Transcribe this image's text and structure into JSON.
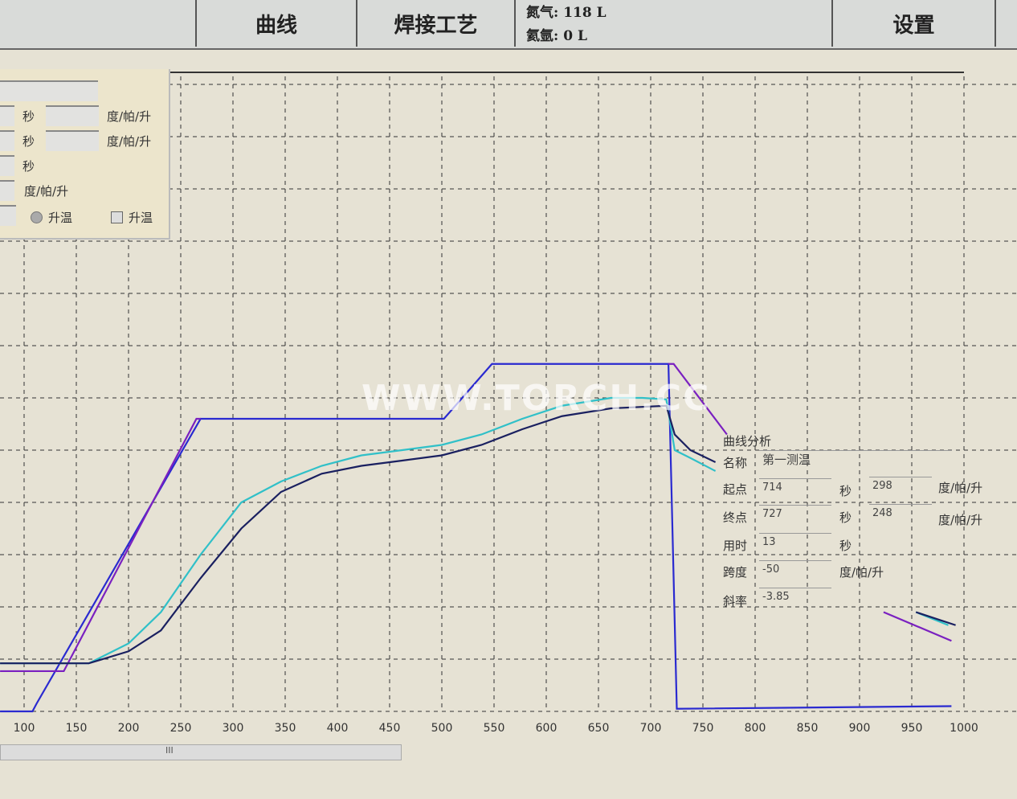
{
  "topbar": {
    "tabs": [
      "曲线",
      "焊接工艺"
    ],
    "gas_1": "氮气: 118 L",
    "gas_2": "氦氩: 0 L",
    "settings": "设置"
  },
  "left_panel": {
    "unit_sec": "秒",
    "unit_rate": "度/帕/升",
    "radio_label": "升温",
    "checkbox_label": "升温"
  },
  "analysis": {
    "title": "曲线分析",
    "name_label": "名称",
    "name_value": "第一测温",
    "start_label": "起点",
    "start_time": "714",
    "start_value": "298",
    "end_label": "终点",
    "end_time": "727",
    "end_value": "248",
    "duration_label": "用时",
    "duration_value": "13",
    "span_label": "跨度",
    "span_value": "-50",
    "slope_label": "斜率",
    "slope_value": "-3.85",
    "unit_sec": "秒",
    "unit_rate": "度/帕/升"
  },
  "watermark": "WWW.TORCH.CC",
  "chart_data": {
    "type": "line",
    "xlim": [
      77,
      1020
    ],
    "ylim": [
      0,
      12
    ],
    "y_units_note": "",
    "grid": true,
    "x_ticks": [
      100,
      150,
      200,
      250,
      300,
      350,
      400,
      450,
      500,
      550,
      600,
      650,
      700,
      750,
      800,
      850,
      900,
      950,
      1000
    ],
    "colors": {
      "setpoint": "#2a2ad0",
      "purple": "#7a20c0",
      "cyan": "#30c0c8",
      "navy": "#1a2060"
    },
    "series": [
      {
        "key": "setpoint",
        "points": [
          [
            77,
            0
          ],
          [
            108,
            0
          ],
          [
            112,
            0.15
          ],
          [
            269,
            5.6
          ],
          [
            502,
            5.6
          ],
          [
            548,
            6.65
          ],
          [
            717,
            6.65
          ],
          [
            725,
            0.05
          ],
          [
            988,
            0.1
          ]
        ]
      },
      {
        "key": "purple",
        "points": [
          [
            77,
            0.77
          ],
          [
            138,
            0.77
          ],
          [
            265,
            5.6
          ],
          [
            269,
            5.6
          ]
        ]
      },
      {
        "key": "purple",
        "points": [
          [
            717,
            6.65
          ],
          [
            722,
            6.65
          ],
          [
            773,
            5.3
          ]
        ]
      },
      {
        "key": "purple",
        "points": [
          [
            923,
            1.9
          ],
          [
            988,
            1.35
          ]
        ]
      },
      {
        "key": "cyan",
        "points": [
          [
            77,
            0.92
          ],
          [
            162,
            0.92
          ],
          [
            200,
            1.3
          ],
          [
            231,
            1.9
          ],
          [
            269,
            3.0
          ],
          [
            308,
            4.0
          ],
          [
            346,
            4.4
          ],
          [
            385,
            4.7
          ],
          [
            423,
            4.9
          ],
          [
            462,
            5.0
          ],
          [
            500,
            5.1
          ],
          [
            538,
            5.3
          ],
          [
            577,
            5.6
          ],
          [
            615,
            5.85
          ],
          [
            662,
            6.0
          ],
          [
            692,
            6.0
          ],
          [
            715,
            5.97
          ],
          [
            723,
            5.0
          ],
          [
            738,
            4.85
          ],
          [
            762,
            4.6
          ]
        ]
      },
      {
        "key": "cyan",
        "points": [
          [
            954,
            1.9
          ],
          [
            985,
            1.65
          ]
        ]
      },
      {
        "key": "navy",
        "points": [
          [
            77,
            0.92
          ],
          [
            162,
            0.92
          ],
          [
            200,
            1.15
          ],
          [
            231,
            1.55
          ],
          [
            269,
            2.55
          ],
          [
            308,
            3.5
          ],
          [
            346,
            4.2
          ],
          [
            385,
            4.55
          ],
          [
            423,
            4.7
          ],
          [
            462,
            4.8
          ],
          [
            500,
            4.9
          ],
          [
            538,
            5.1
          ],
          [
            577,
            5.4
          ],
          [
            615,
            5.65
          ],
          [
            662,
            5.8
          ],
          [
            715,
            5.85
          ],
          [
            723,
            5.3
          ],
          [
            738,
            5.0
          ],
          [
            762,
            4.77
          ]
        ]
      },
      {
        "key": "navy",
        "points": [
          [
            954,
            1.9
          ],
          [
            992,
            1.65
          ]
        ]
      }
    ]
  }
}
